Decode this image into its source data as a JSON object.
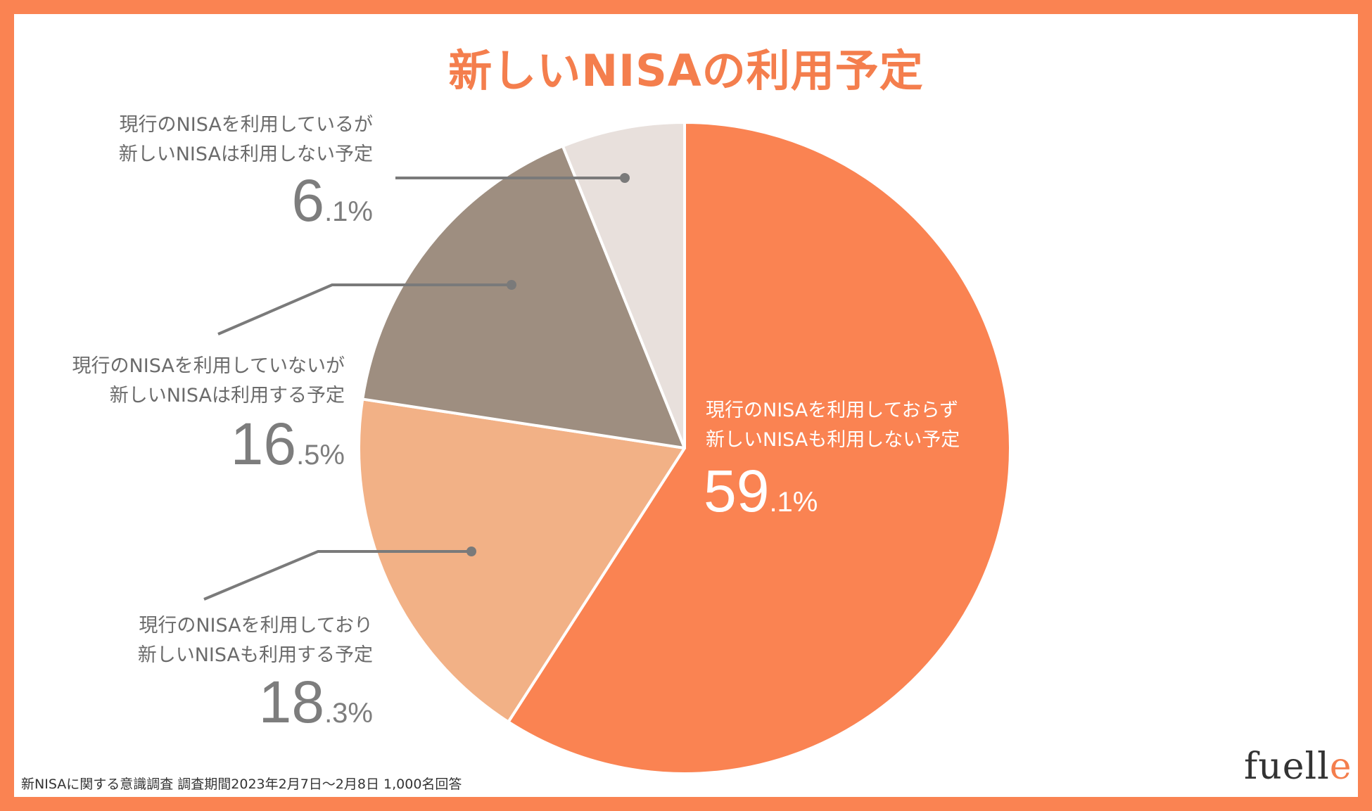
{
  "title": "新しいNISAの利用予定",
  "footer": "新NISAに関する意識調査 調査期間2023年2月7日〜2月8日 1,000名回答",
  "logo": {
    "main": "fuell",
    "accent": "e"
  },
  "chart_data": {
    "type": "pie",
    "unit": "%",
    "slices": [
      {
        "line1": "現行のNISAを利用しておらず",
        "line2": "新しいNISAも利用しない予定",
        "value": 59.1,
        "int": "59",
        "dec": ".1%",
        "color": "#FA8352"
      },
      {
        "line1": "現行のNISAを利用しており",
        "line2": "新しいNISAも利用する予定",
        "value": 18.3,
        "int": "18",
        "dec": ".3%",
        "color": "#F2B186"
      },
      {
        "line1": "現行のNISAを利用していないが",
        "line2": "新しいNISAは利用する予定",
        "value": 16.5,
        "int": "16",
        "dec": ".5%",
        "color": "#9E8E80"
      },
      {
        "line1": "現行のNISAを利用しているが",
        "line2": "新しいNISAは利用しない予定",
        "value": 6.1,
        "int": "6",
        "dec": ".1%",
        "color": "#E8E0DC"
      }
    ]
  }
}
